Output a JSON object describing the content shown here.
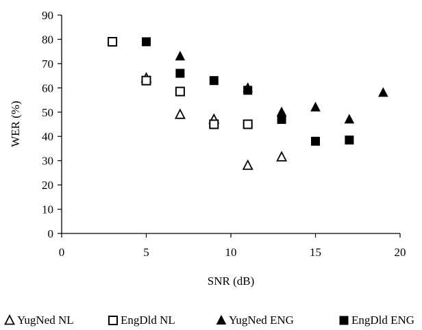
{
  "chart_data": {
    "type": "scatter",
    "xlabel": "SNR (dB)",
    "ylabel": "WER (%)",
    "xlim": [
      0,
      20
    ],
    "ylim": [
      0,
      90
    ],
    "xticks": [
      "0",
      "5",
      "10",
      "15",
      "20"
    ],
    "yticks": [
      "0",
      "10",
      "20",
      "30",
      "40",
      "50",
      "60",
      "70",
      "80",
      "90"
    ],
    "grid": false,
    "legend_position": "bottom",
    "series": [
      {
        "name": "YugNed NL",
        "marker": "triangle-open",
        "x": [
          5,
          7,
          9,
          11,
          13
        ],
        "y": [
          64,
          49,
          47,
          28,
          31.5
        ]
      },
      {
        "name": "EngDld NL",
        "marker": "square-open",
        "x": [
          3,
          5,
          7,
          9,
          11
        ],
        "y": [
          79,
          63,
          58.5,
          45,
          45
        ]
      },
      {
        "name": "YugNed ENG",
        "marker": "triangle-filled",
        "x": [
          7,
          11,
          13,
          15,
          17,
          19
        ],
        "y": [
          73,
          60,
          50,
          52,
          47,
          58
        ]
      },
      {
        "name": "EngDld ENG",
        "marker": "square-filled",
        "x": [
          5,
          7,
          9,
          11,
          13,
          15,
          17
        ],
        "y": [
          79,
          66,
          63,
          59,
          47,
          38,
          38.5
        ]
      }
    ]
  }
}
